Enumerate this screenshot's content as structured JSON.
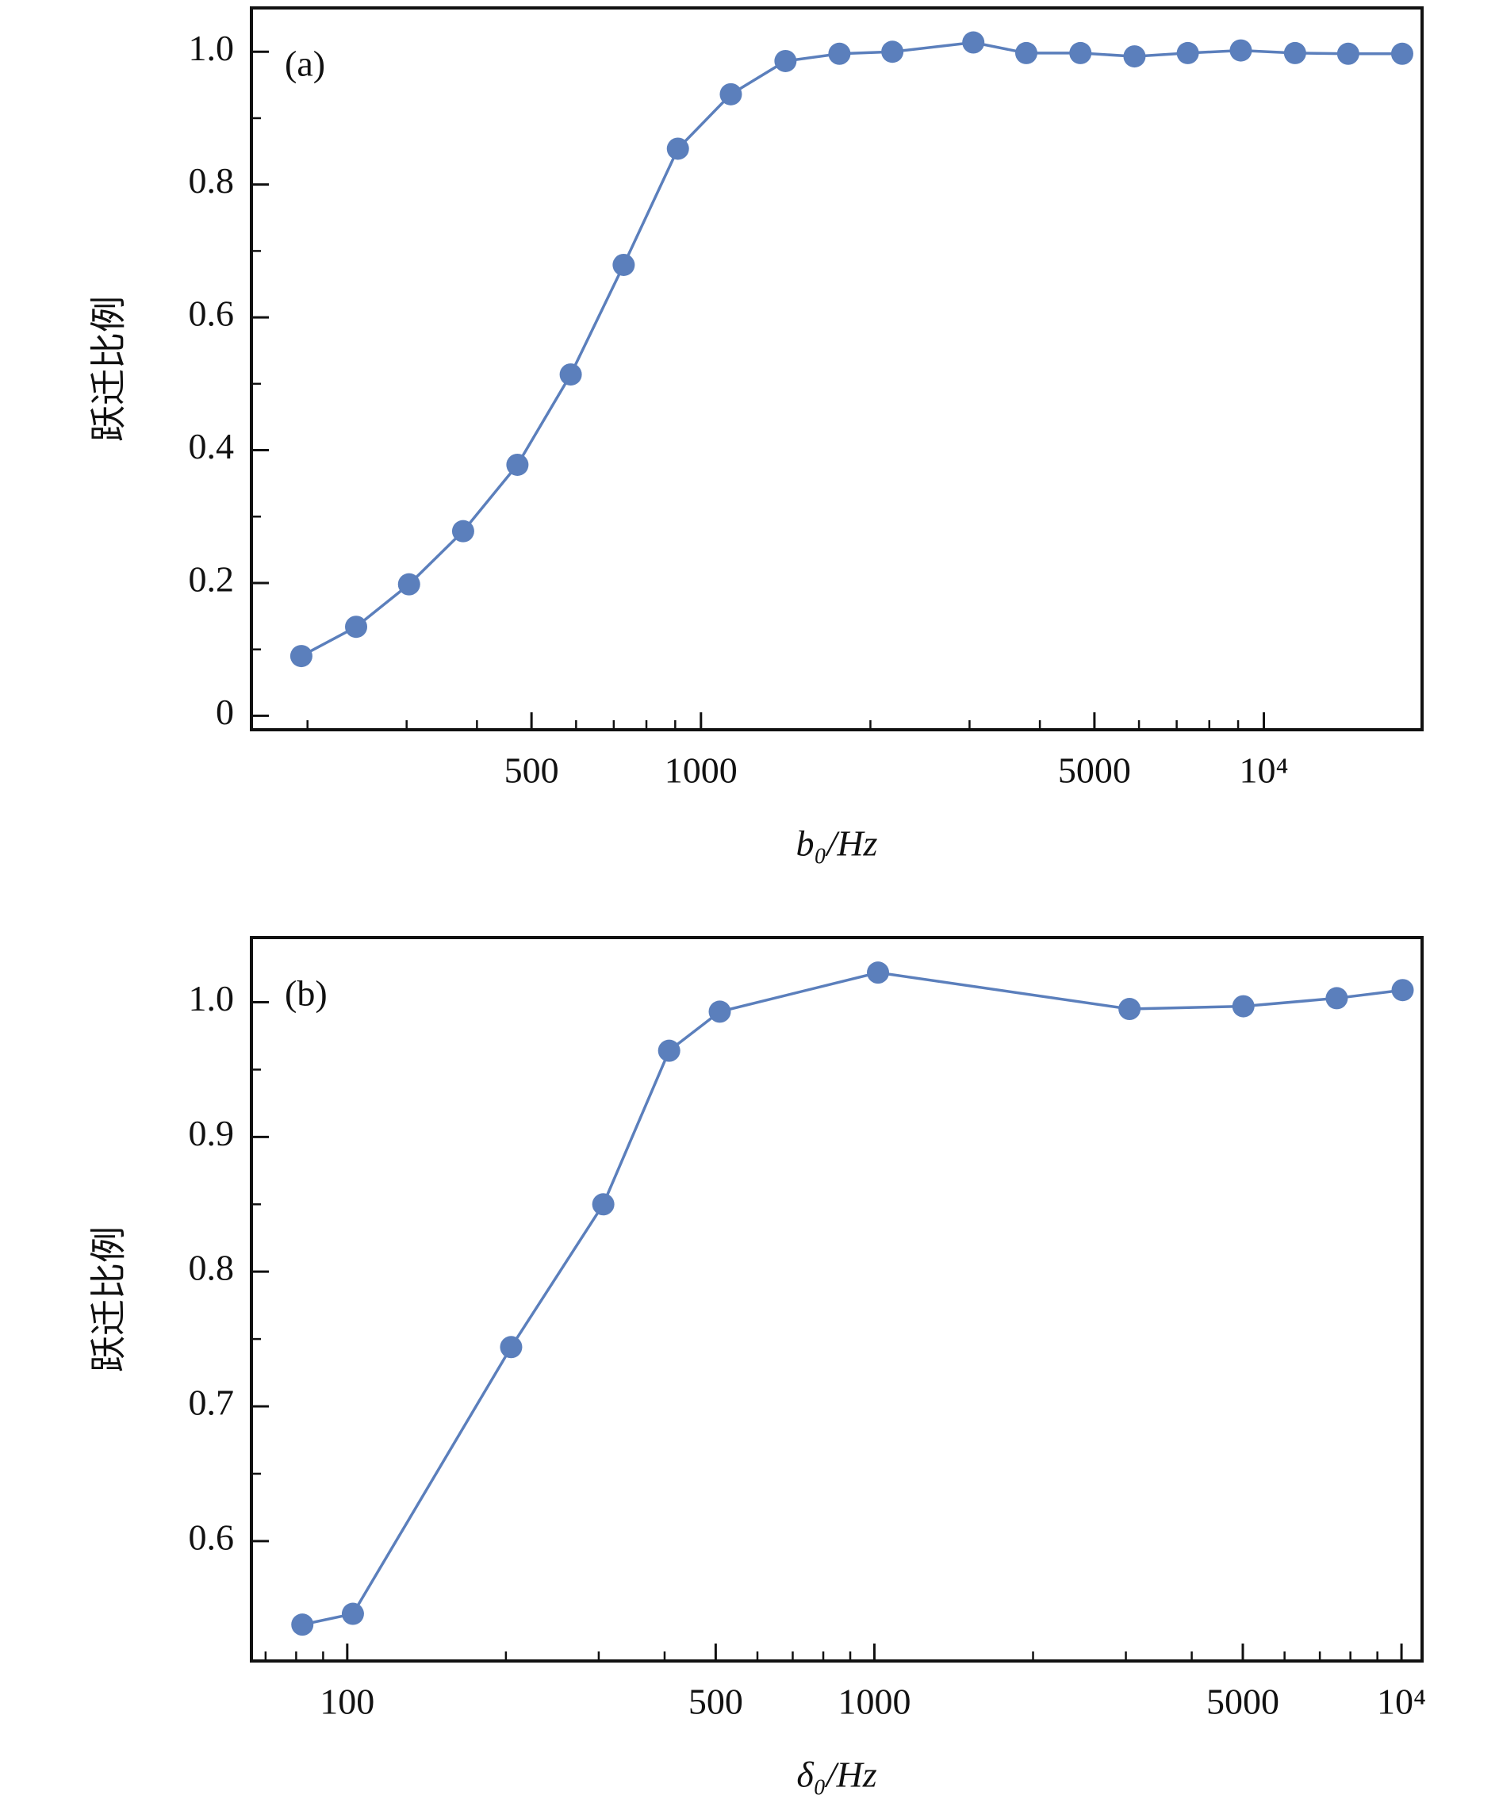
{
  "chart_data": [
    {
      "type": "line",
      "panel_label": "(a)",
      "xlabel": "b₀/Hz",
      "ylabel": "跃迁比例",
      "xscale": "log",
      "color": "#5b7fbc",
      "x": [
        195,
        244,
        303,
        378,
        472,
        587,
        729,
        910,
        1130,
        1413,
        1762,
        2188,
        3047,
        3784,
        4722,
        5891,
        7326,
        9100,
        11360,
        14120,
        17610
      ],
      "values": [
        0.09,
        0.134,
        0.198,
        0.278,
        0.378,
        0.514,
        0.679,
        0.854,
        0.936,
        0.986,
        0.997,
        1.0,
        1.014,
        0.998,
        0.998,
        0.993,
        0.998,
        1.002,
        0.998,
        0.997,
        0.997
      ],
      "xlim": [
        159,
        19100
      ],
      "xticks": [
        500,
        1000,
        5000,
        {
          "value": 10000,
          "label": "10⁴"
        }
      ],
      "ylim": [
        -0.021,
        1.066
      ],
      "yticks": [
        0,
        0.2,
        0.4,
        0.6,
        0.8,
        {
          "value": 1,
          "label": "1.0"
        }
      ]
    },
    {
      "type": "line",
      "panel_label": "(b)",
      "xlabel": "δ₀/Hz",
      "ylabel": "跃迁比例",
      "xscale": "log",
      "color": "#5b7fbc",
      "x": [
        82.2,
        102.5,
        204.6,
        306,
        408,
        509,
        1016,
        3048,
        5012,
        7536,
        10050
      ],
      "values": [
        0.538,
        0.546,
        0.744,
        0.85,
        0.964,
        0.993,
        1.022,
        0.995,
        0.997,
        1.003,
        1.009
      ],
      "xlim": [
        65.8,
        10940
      ],
      "xticks": [
        100,
        500,
        1000,
        5000,
        {
          "value": 10000,
          "label": "10⁴"
        }
      ],
      "ylim": [
        0.511,
        1.048
      ],
      "yticks": [
        0.6,
        0.7,
        0.8,
        0.9,
        {
          "value": 1,
          "label": "1.0"
        }
      ]
    }
  ]
}
